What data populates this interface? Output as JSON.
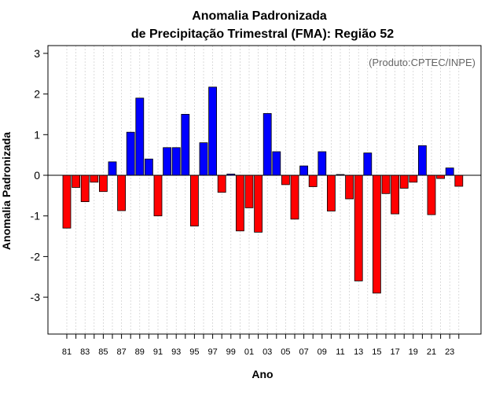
{
  "chart_data": {
    "type": "bar",
    "title_line1": "Anomalia Padronizada",
    "title_line2": "de Precipitação Trimestral (FMA): Região 52",
    "xlabel": "Ano",
    "ylabel": "Anomalia Padronizada",
    "credit": "(Produto:CPTEC/INPE)",
    "ylim": [
      -3.9,
      3.2
    ],
    "yticks": [
      -3,
      -2,
      -1,
      0,
      1,
      2,
      3
    ],
    "categories": [
      "81",
      "82",
      "83",
      "84",
      "85",
      "86",
      "87",
      "88",
      "89",
      "90",
      "91",
      "92",
      "93",
      "94",
      "95",
      "96",
      "97",
      "98",
      "99",
      "00",
      "01",
      "02",
      "03",
      "04",
      "05",
      "06",
      "07",
      "08",
      "09",
      "10",
      "11",
      "12",
      "13",
      "14",
      "15",
      "16",
      "17",
      "18",
      "19",
      "20",
      "21",
      "22",
      "23",
      "24"
    ],
    "xtick_labels": [
      "81",
      "83",
      "85",
      "87",
      "89",
      "91",
      "93",
      "95",
      "97",
      "99",
      "01",
      "03",
      "05",
      "07",
      "09",
      "11",
      "13",
      "15",
      "17",
      "19",
      "21",
      "23"
    ],
    "values": [
      -1.3,
      -0.3,
      -0.65,
      -0.17,
      -0.4,
      0.33,
      -0.87,
      1.06,
      1.9,
      0.4,
      -1.0,
      0.68,
      0.68,
      1.5,
      -1.25,
      0.8,
      2.17,
      -0.42,
      0.03,
      -1.37,
      -0.8,
      -1.4,
      1.52,
      0.58,
      -0.23,
      -1.08,
      0.23,
      -0.28,
      0.58,
      -0.88,
      0.02,
      -0.58,
      -2.6,
      0.55,
      -2.9,
      -0.45,
      -0.95,
      -0.32,
      -0.17,
      0.73,
      -0.97,
      -0.08,
      0.18,
      -0.27
    ],
    "positive_color": "#0000ff",
    "negative_color": "#ff0000",
    "grid": true
  }
}
